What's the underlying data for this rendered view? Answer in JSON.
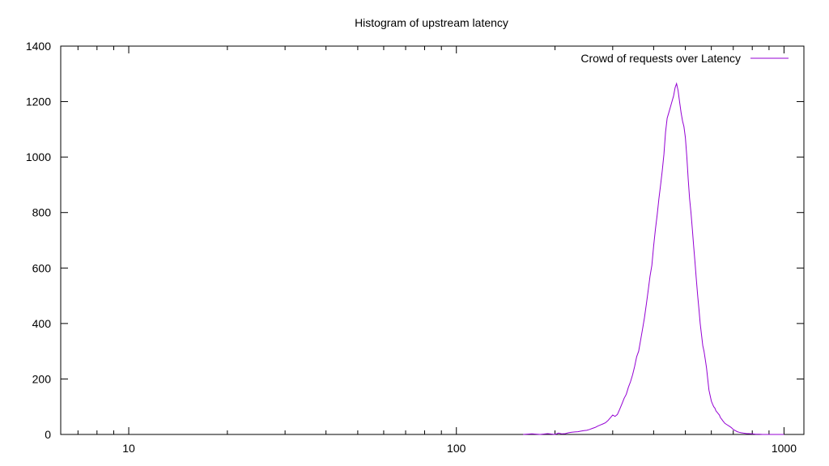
{
  "chart_data": {
    "type": "line",
    "title": "Histogram of upstream latency",
    "xlabel": "",
    "ylabel": "",
    "xscale": "log",
    "xlim": [
      6.2,
      1150
    ],
    "ylim": [
      0,
      1400
    ],
    "x_ticks": [
      10,
      100,
      1000
    ],
    "x_tick_labels": [
      "10",
      "100",
      "1000"
    ],
    "y_ticks": [
      0,
      200,
      400,
      600,
      800,
      1000,
      1200,
      1400
    ],
    "y_tick_labels": [
      "0",
      "200",
      "400",
      "600",
      "800",
      "1000",
      "1200",
      "1400"
    ],
    "grid": false,
    "legend": {
      "position": "top-right"
    },
    "series": [
      {
        "name": "Crowd of requests over Latency",
        "color": "#9400d3",
        "x": [
          160,
          170,
          180,
          190,
          200,
          205,
          210,
          215,
          220,
          225,
          230,
          235,
          240,
          245,
          250,
          255,
          260,
          265,
          270,
          275,
          280,
          285,
          290,
          295,
          300,
          305,
          310,
          315,
          320,
          325,
          330,
          335,
          340,
          345,
          350,
          355,
          360,
          365,
          370,
          375,
          380,
          385,
          390,
          395,
          400,
          405,
          410,
          415,
          420,
          425,
          430,
          435,
          440,
          445,
          450,
          455,
          460,
          465,
          470,
          475,
          480,
          485,
          490,
          495,
          500,
          505,
          510,
          515,
          520,
          525,
          530,
          535,
          540,
          545,
          550,
          555,
          560,
          565,
          570,
          575,
          580,
          585,
          590,
          595,
          600,
          605,
          610,
          615,
          620,
          625,
          630,
          635,
          640,
          645,
          650,
          660,
          670,
          680,
          690,
          700,
          710,
          720,
          730,
          740,
          750,
          760,
          770,
          780,
          800,
          820,
          840,
          860,
          880,
          900,
          950,
          1000
        ],
        "y": [
          0,
          2,
          0,
          3,
          0,
          5,
          2,
          3,
          6,
          8,
          9,
          10,
          12,
          14,
          15,
          18,
          22,
          25,
          30,
          34,
          38,
          42,
          50,
          60,
          70,
          65,
          72,
          90,
          110,
          130,
          145,
          170,
          190,
          215,
          245,
          280,
          300,
          340,
          380,
          420,
          470,
          520,
          570,
          610,
          680,
          740,
          790,
          850,
          900,
          950,
          1010,
          1090,
          1140,
          1160,
          1180,
          1200,
          1220,
          1250,
          1265,
          1240,
          1200,
          1160,
          1130,
          1110,
          1070,
          1000,
          920,
          850,
          800,
          740,
          680,
          620,
          560,
          500,
          450,
          400,
          360,
          320,
          300,
          270,
          240,
          200,
          160,
          140,
          120,
          110,
          100,
          95,
          85,
          80,
          75,
          70,
          60,
          55,
          50,
          40,
          35,
          30,
          25,
          18,
          14,
          10,
          8,
          6,
          5,
          4,
          3,
          3,
          2,
          1,
          1,
          0,
          0,
          0,
          0,
          0
        ]
      }
    ]
  }
}
